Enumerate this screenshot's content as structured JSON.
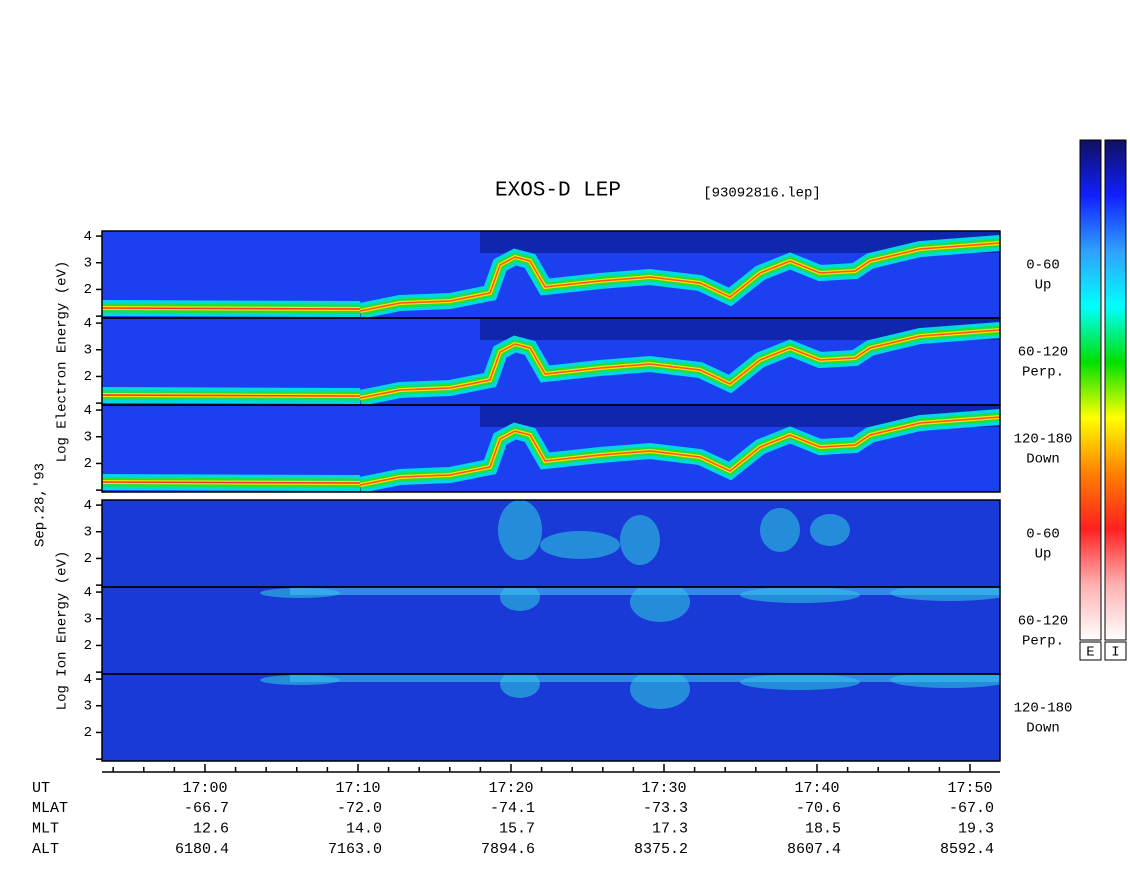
{
  "chart_data": {
    "type": "spectrogram",
    "title": "EXOS-D LEP",
    "subtitle": "[93092816.lep]",
    "date_label": "Sep.28,'93",
    "xlim": [
      1013.27,
      1071.96
    ],
    "xticks": [
      {
        "value": 1020,
        "label": "17:00"
      },
      {
        "value": 1030,
        "label": "17:10"
      },
      {
        "value": 1040,
        "label": "17:20"
      },
      {
        "value": 1050,
        "label": "17:30"
      },
      {
        "value": 1060,
        "label": "17:40"
      },
      {
        "value": 1070,
        "label": "17:50"
      }
    ],
    "xminorticks": [
      1014,
      1016,
      1018,
      1022,
      1024,
      1026,
      1028,
      1032,
      1034,
      1036,
      1038,
      1042,
      1044,
      1046,
      1048,
      1052,
      1054,
      1056,
      1058,
      1062,
      1064,
      1066,
      1068
    ],
    "xlabel": "UT",
    "ylim": [
      0.93,
      4.19
    ],
    "yticks": [
      2,
      3,
      4
    ],
    "yminorticks": [
      1
    ],
    "groups": [
      {
        "ylabel": "Log Electron Energy (eV)",
        "panels": [
          {
            "label": [
              "0-60",
              "Up"
            ]
          },
          {
            "label": [
              "60-120",
              "Perp."
            ]
          },
          {
            "label": [
              "120-180",
              "Down"
            ]
          }
        ]
      },
      {
        "ylabel": "Log Ion Energy (eV)",
        "panels": [
          {
            "label": [
              "0-60",
              "Up"
            ]
          },
          {
            "label": [
              "60-120",
              "Perp."
            ]
          },
          {
            "label": [
              "120-180",
              "Down"
            ]
          }
        ]
      }
    ],
    "orbit": [
      {
        "name": "MLAT",
        "values": [
          -66.7,
          -72.0,
          -74.1,
          -73.3,
          -70.6,
          -67.0
        ],
        "value_labels": [
          "-66.7",
          "-72.0",
          "-74.1",
          "-73.3",
          "-70.6",
          "-67.0"
        ]
      },
      {
        "name": "MLT",
        "values": [
          12.6,
          14.0,
          15.7,
          17.3,
          18.5,
          19.3
        ],
        "value_labels": [
          "12.6",
          "14.0",
          "15.7",
          "17.3",
          "18.5",
          "19.3"
        ]
      },
      {
        "name": "ALT",
        "values": [
          6180.4,
          7163.0,
          7894.6,
          8375.2,
          8607.4,
          8592.4
        ],
        "value_labels": [
          "6180.4",
          "7163.0",
          "7894.6",
          "8375.2",
          "8607.4",
          "8592.4"
        ]
      }
    ],
    "colorbars": [
      "E",
      "I"
    ],
    "colormap": [
      "#ffffff",
      "#ffb0b0",
      "#ff2020",
      "#ff8000",
      "#ffff00",
      "#00e000",
      "#00ffff",
      "#30a0ff",
      "#1020ff",
      "#101060"
    ]
  }
}
